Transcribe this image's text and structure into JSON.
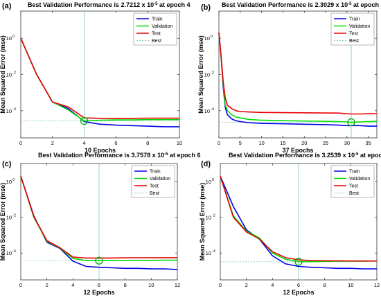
{
  "chart_data": [
    {
      "type": "line",
      "panel_label": "(a)",
      "title_prefix": "Best Validation Performance is",
      "best_value": "2.7212",
      "best_exp": "-5",
      "best_epoch": 4,
      "title_suffix": "at epoch 4",
      "xlabel": "10 Epochs",
      "ylabel": "Mean Squared Error  (mse)",
      "xlim": [
        0,
        10
      ],
      "ylim_log10": [
        -5.5,
        1.5
      ],
      "xticks": [
        0,
        2,
        4,
        6,
        8,
        10
      ],
      "yticks": [
        {
          "label": "10",
          "exp": "0",
          "value": 1
        },
        {
          "label": "10",
          "exp": "-2",
          "value": 0.01
        },
        {
          "label": "10",
          "exp": "-4",
          "value": 0.0001
        }
      ],
      "best_level": 2.7212e-05,
      "legend": [
        "Train",
        "Validation",
        "Test",
        "Best"
      ],
      "series": [
        {
          "name": "Train",
          "x": [
            0,
            1,
            2,
            3,
            4,
            5,
            6,
            7,
            8,
            9,
            10
          ],
          "values": [
            1,
            0.01,
            0.0003,
            0.00013,
            2.5e-05,
            1.8e-05,
            1.6e-05,
            1.5e-05,
            1.4e-05,
            1.3e-05,
            1.3e-05
          ]
        },
        {
          "name": "Validation",
          "x": [
            0,
            1,
            2,
            3,
            4,
            5,
            6,
            7,
            8,
            9,
            10
          ],
          "values": [
            1,
            0.01,
            0.0003,
            0.00011,
            2.7e-05,
            3e-05,
            3.1e-05,
            3.1e-05,
            3.2e-05,
            3.2e-05,
            3.2e-05
          ]
        },
        {
          "name": "Test",
          "x": [
            0,
            1,
            2,
            3,
            4,
            5,
            6,
            7,
            8,
            9,
            10
          ],
          "values": [
            1,
            0.01,
            0.0003,
            0.00016,
            4e-05,
            3.8e-05,
            3.8e-05,
            3.8e-05,
            3.9e-05,
            3.9e-05,
            3.9e-05
          ]
        }
      ]
    },
    {
      "type": "line",
      "panel_label": "(b)",
      "title_prefix": "Best Validation Performance is",
      "best_value": "2.3029",
      "best_exp": "-5",
      "best_epoch": 31,
      "title_suffix": "at epoch 31",
      "xlabel": "37 Epochs",
      "ylabel": "Mean Squared Error  (mse)",
      "xlim": [
        0,
        37
      ],
      "ylim_log10": [
        -5.5,
        1.5
      ],
      "xticks": [
        0,
        5,
        10,
        15,
        20,
        25,
        30,
        35
      ],
      "yticks": [
        {
          "label": "10",
          "exp": "0",
          "value": 1
        },
        {
          "label": "10",
          "exp": "-2",
          "value": 0.01
        },
        {
          "label": "10",
          "exp": "-4",
          "value": 0.0001
        }
      ],
      "best_level": 2.3029e-05,
      "legend": [
        "Train",
        "Validation",
        "Test",
        "Best"
      ],
      "series": [
        {
          "name": "Train",
          "x": [
            0,
            0.5,
            1,
            1.5,
            2,
            3,
            4,
            5,
            7,
            10,
            15,
            20,
            25,
            28,
            30,
            31,
            33,
            35,
            37
          ],
          "values": [
            2,
            0.1,
            0.002,
            0.00015,
            6e-05,
            3.5e-05,
            2.8e-05,
            2.5e-05,
            2.2e-05,
            2e-05,
            1.9e-05,
            1.8e-05,
            1.7e-05,
            1.6e-05,
            1.5e-05,
            1.5e-05,
            1.5e-05,
            1.4e-05,
            1.4e-05
          ]
        },
        {
          "name": "Validation",
          "x": [
            0,
            0.5,
            1,
            1.5,
            2,
            3,
            4,
            5,
            7,
            10,
            15,
            20,
            25,
            28,
            30,
            31,
            33,
            35,
            37
          ],
          "values": [
            2,
            0.1,
            0.003,
            0.0002,
            0.0001,
            6e-05,
            4.5e-05,
            4e-05,
            3.3e-05,
            3e-05,
            2.8e-05,
            2.7e-05,
            2.6e-05,
            2.5e-05,
            2.4e-05,
            2.3e-05,
            2.4e-05,
            2.5e-05,
            2.6e-05
          ]
        },
        {
          "name": "Test",
          "x": [
            0,
            0.5,
            1,
            1.5,
            2,
            3,
            4,
            5,
            7,
            10,
            15,
            20,
            25,
            28,
            30,
            31,
            33,
            35,
            37
          ],
          "values": [
            2,
            0.12,
            0.004,
            0.0005,
            0.0002,
            0.00013,
            0.0001,
            9e-05,
            8.5e-05,
            8e-05,
            7.8e-05,
            7.7e-05,
            7.5e-05,
            7.4e-05,
            6.8e-05,
            6.6e-05,
            6.6e-05,
            6.8e-05,
            6.9e-05
          ]
        }
      ]
    },
    {
      "type": "line",
      "panel_label": "(c)",
      "title_prefix": "Best Validation Performance is",
      "best_value": "3.7578",
      "best_exp": "-5",
      "best_epoch": 6,
      "title_suffix": "at epoch 6",
      "xlabel": "12 Epochs",
      "ylabel": "Mean Squared Error  (mse)",
      "xlim": [
        0,
        12
      ],
      "ylim_log10": [
        -5.5,
        1
      ],
      "xticks": [
        0,
        2,
        4,
        6,
        8,
        10,
        12
      ],
      "yticks": [
        {
          "label": "10",
          "exp": "0",
          "value": 1
        },
        {
          "label": "10",
          "exp": "-2",
          "value": 0.01
        },
        {
          "label": "10",
          "exp": "-4",
          "value": 0.0001
        }
      ],
      "best_level": 3.7578e-05,
      "legend": [
        "Train",
        "Validation",
        "Test",
        "Best"
      ],
      "series": [
        {
          "name": "Train",
          "x": [
            0,
            1,
            2,
            3,
            4,
            5,
            6,
            7,
            8,
            9,
            10,
            11,
            12
          ],
          "values": [
            2,
            0.012,
            0.0004,
            0.00018,
            3.5e-05,
            1.8e-05,
            1.6e-05,
            1.5e-05,
            1.4e-05,
            1.4e-05,
            1.3e-05,
            1.3e-05,
            1.2e-05
          ]
        },
        {
          "name": "Validation",
          "x": [
            0,
            1,
            2,
            3,
            4,
            5,
            6,
            7,
            8,
            9,
            10,
            11,
            12
          ],
          "values": [
            2,
            0.01,
            0.00045,
            0.00019,
            5e-05,
            3.8e-05,
            3.8e-05,
            3.8e-05,
            3.9e-05,
            3.9e-05,
            3.9e-05,
            4e-05,
            4e-05
          ]
        },
        {
          "name": "Test",
          "x": [
            0,
            1,
            2,
            3,
            4,
            5,
            6,
            7,
            8,
            9,
            10,
            11,
            12
          ],
          "values": [
            2,
            0.011,
            0.0005,
            0.0002,
            6e-05,
            5.3e-05,
            5.3e-05,
            5.3e-05,
            5.4e-05,
            5.4e-05,
            5.4e-05,
            5.5e-05,
            5.5e-05
          ]
        }
      ]
    },
    {
      "type": "line",
      "panel_label": "(d)",
      "title_prefix": "Best Validation Performance is",
      "best_value": "3.2539",
      "best_exp": "-5",
      "best_epoch": 6,
      "title_suffix": "at epoch 6",
      "xlabel": "12 Epochs",
      "ylabel": "Mean Squared Error  (mse)",
      "xlim": [
        0,
        12
      ],
      "ylim_log10": [
        -5.5,
        1
      ],
      "xticks": [
        0,
        2,
        4,
        6,
        8,
        10,
        12
      ],
      "yticks": [
        {
          "label": "10",
          "exp": "0",
          "value": 1
        },
        {
          "label": "10",
          "exp": "-2",
          "value": 0.01
        },
        {
          "label": "10",
          "exp": "-4",
          "value": 0.0001
        }
      ],
      "best_level": 3.2539e-05,
      "legend": [
        "Train",
        "Validation",
        "Test",
        "Best"
      ],
      "series": [
        {
          "name": "Train",
          "x": [
            0,
            1,
            2,
            3,
            4,
            5,
            6,
            7,
            8,
            9,
            10,
            11,
            12
          ],
          "values": [
            2,
            0.04,
            0.002,
            0.0006,
            7e-05,
            2.5e-05,
            1.8e-05,
            1.6e-05,
            1.5e-05,
            1.4e-05,
            1.4e-05,
            1.3e-05,
            1.3e-05
          ]
        },
        {
          "name": "Validation",
          "x": [
            0,
            1,
            2,
            3,
            4,
            5,
            6,
            7,
            8,
            9,
            10,
            11,
            12
          ],
          "values": [
            2,
            0.012,
            0.0017,
            0.0007,
            0.0001,
            4.5e-05,
            3.3e-05,
            3.3e-05,
            3.4e-05,
            3.5e-05,
            3.5e-05,
            3.5e-05,
            3.6e-05
          ]
        },
        {
          "name": "Test",
          "x": [
            0,
            1,
            2,
            3,
            4,
            5,
            6,
            7,
            8,
            9,
            10,
            11,
            12
          ],
          "values": [
            2,
            0.01,
            0.0015,
            0.0006,
            0.00012,
            5.5e-05,
            4.2e-05,
            3.8e-05,
            3.7e-05,
            3.7e-05,
            3.6e-05,
            3.6e-05,
            3.6e-05
          ]
        }
      ]
    }
  ],
  "colors": {
    "train": "#0000e6",
    "validation": "#00dd00",
    "test": "#e60000",
    "best": "#7fc9c2",
    "axis": "#333333",
    "grid_bg": "#ffffff"
  }
}
